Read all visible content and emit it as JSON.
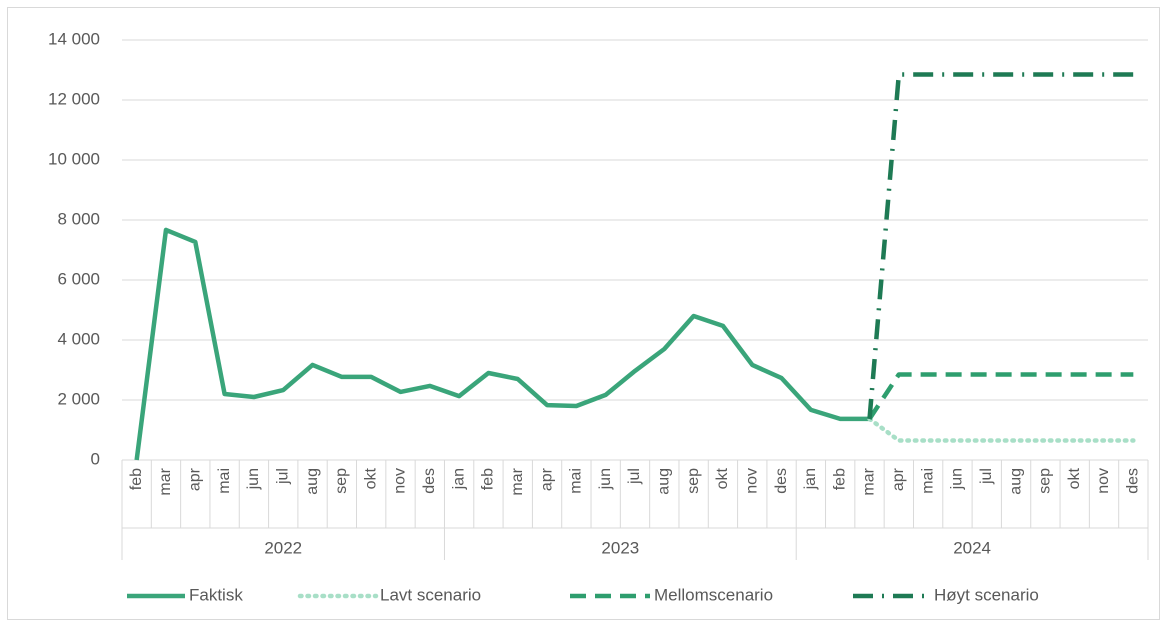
{
  "chart_data": {
    "type": "line",
    "category_groups": [
      {
        "name": "2022",
        "categories": [
          "feb",
          "mar",
          "apr",
          "mai",
          "jun",
          "jul",
          "aug",
          "sep",
          "okt",
          "nov",
          "des"
        ]
      },
      {
        "name": "2023",
        "categories": [
          "jan",
          "feb",
          "mar",
          "apr",
          "mai",
          "jun",
          "jul",
          "aug",
          "sep",
          "okt",
          "nov",
          "des"
        ]
      },
      {
        "name": "2024",
        "categories": [
          "jan",
          "feb",
          "mar",
          "apr",
          "mai",
          "jun",
          "jul",
          "aug",
          "sep",
          "okt",
          "nov",
          "des"
        ]
      }
    ],
    "series": [
      {
        "name": "Faktisk",
        "color": "#3aa57a",
        "style": "solid",
        "values": [
          0,
          7670,
          7270,
          2200,
          2100,
          2330,
          3170,
          2770,
          2770,
          2270,
          2470,
          2130,
          2900,
          2700,
          1830,
          1800,
          2170,
          2970,
          3700,
          4800,
          4470,
          3170,
          2730,
          1670,
          1370,
          1370,
          null,
          null,
          null,
          null,
          null,
          null,
          null,
          null,
          null
        ]
      },
      {
        "name": "Lavt scenario",
        "color": "#a8dfc7",
        "style": "dotted",
        "values": [
          null,
          null,
          null,
          null,
          null,
          null,
          null,
          null,
          null,
          null,
          null,
          null,
          null,
          null,
          null,
          null,
          null,
          null,
          null,
          null,
          null,
          null,
          null,
          null,
          null,
          1370,
          650,
          650,
          650,
          650,
          650,
          650,
          650,
          650,
          650
        ]
      },
      {
        "name": "Mellomscenario",
        "color": "#2e9e6e",
        "style": "dashed",
        "values": [
          null,
          null,
          null,
          null,
          null,
          null,
          null,
          null,
          null,
          null,
          null,
          null,
          null,
          null,
          null,
          null,
          null,
          null,
          null,
          null,
          null,
          null,
          null,
          null,
          null,
          1370,
          2850,
          2850,
          2850,
          2850,
          2850,
          2850,
          2850,
          2850,
          2850
        ]
      },
      {
        "name": "Høyt scenario",
        "color": "#1e7a54",
        "style": "dashdot",
        "values": [
          null,
          null,
          null,
          null,
          null,
          null,
          null,
          null,
          null,
          null,
          null,
          null,
          null,
          null,
          null,
          null,
          null,
          null,
          null,
          null,
          null,
          null,
          null,
          null,
          null,
          1370,
          12850,
          12850,
          12850,
          12850,
          12850,
          12850,
          12850,
          12850,
          12850
        ]
      }
    ],
    "ylim": [
      0,
      14000
    ],
    "yticks": [
      0,
      {
        "value": 2000,
        "label": "2 000"
      },
      {
        "value": 4000,
        "label": "4 000"
      },
      {
        "value": 6000,
        "label": "6 000"
      },
      {
        "value": 8000,
        "label": "8 000"
      },
      {
        "value": 10000,
        "label": "10 000"
      },
      {
        "value": 12000,
        "label": "12 000"
      },
      {
        "value": 14000,
        "label": "14 000"
      }
    ],
    "grid": true,
    "legend": "bottom"
  }
}
